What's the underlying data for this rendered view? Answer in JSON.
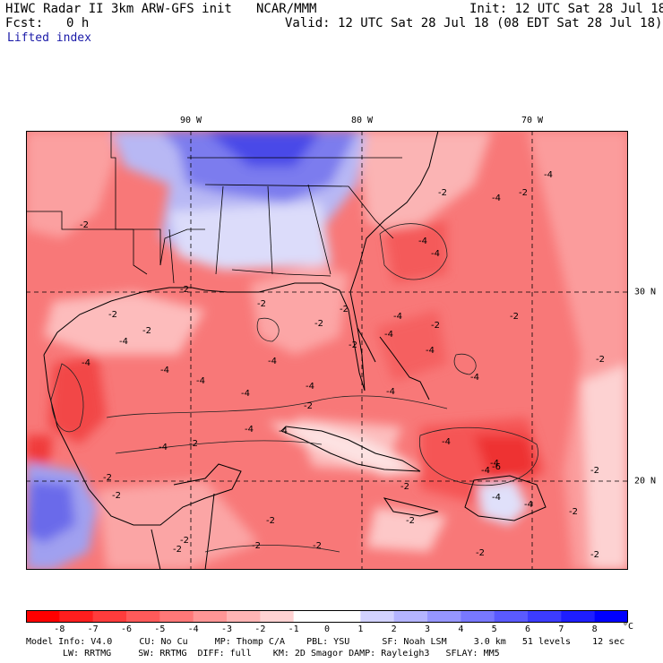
{
  "header": {
    "model_title": "HIWC Radar II 3km ARW-GFS init",
    "org": "NCAR/MMM",
    "init": "Init: 12 UTC Sat 28 Jul 18",
    "fcst_label": "Fcst:",
    "fcst_value": "0 h",
    "valid": "Valid: 12 UTC Sat 28 Jul 18 (08 EDT Sat 28 Jul 18)",
    "field": "Lifted index"
  },
  "map": {
    "lon_labels": [
      "90 W",
      "80 W",
      "70 W"
    ],
    "lat_labels": [
      "30 N",
      "20 N"
    ],
    "contour_labels": [
      "-2",
      "-4",
      "-6"
    ],
    "colors": {
      "strong_neg": "#ff3030",
      "mid_neg": "#f87272",
      "weak_neg": "#fca3a3",
      "light_neg": "#fdd7d7",
      "neutral": "#ffffff",
      "weak_pos": "#c8c8f4",
      "mid_pos": "#8f8fee",
      "strong_pos": "#3232e6",
      "coast": "#000000"
    }
  },
  "colorbar": {
    "levels": [
      "-8",
      "-7",
      "-6",
      "-5",
      "-4",
      "-3",
      "-2",
      "-1",
      "0",
      "1",
      "2",
      "3",
      "4",
      "5",
      "6",
      "7",
      "8"
    ],
    "unit": "°C",
    "colors": [
      "#ff0000",
      "#ff1e1e",
      "#ff3c3c",
      "#ff5a5a",
      "#ff7878",
      "#ff9696",
      "#ffb4b4",
      "#ffd2d2",
      "#ffffff",
      "#ffffff",
      "#d2d2ff",
      "#b4b4ff",
      "#9696ff",
      "#7878ff",
      "#5a5aff",
      "#3c3cff",
      "#1e1eff",
      "#0000ff"
    ]
  },
  "model_info": {
    "line1": "Model Info: V4.0     CU: No Cu     MP: Thomp C/A    PBL: YSU      SF: Noah LSM     3.0 km   51 levels    12 sec",
    "line2": "LW: RRTMG     SW: RRTMG  DIFF: full    KM: 2D Smagor DAMP: Rayleigh3   SFLAY: MM5"
  }
}
